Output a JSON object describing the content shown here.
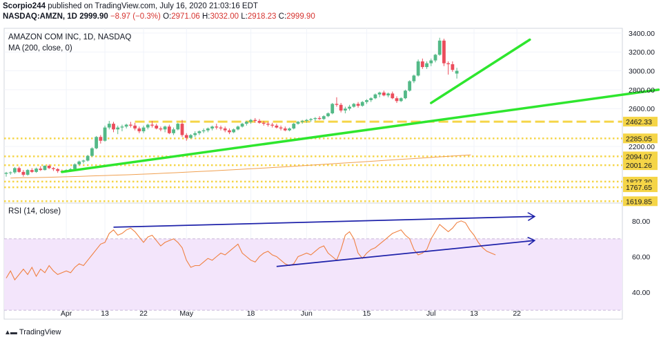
{
  "header": {
    "publisher": "Scorpio244",
    "published_text": "published on TradingView.com, July 16, 2020 21:03:16 EDT",
    "symbol": "NASDAQ:AMZN, 1D",
    "last": "2999.90",
    "change": "−8.97 (−0.3%)",
    "o_label": "O:",
    "o_value": "2971.06",
    "h_label": "H:",
    "h_value": "3032.00",
    "l_label": "L:",
    "l_value": "2918.23",
    "c_label": "C:",
    "c_value": "2999.90"
  },
  "footer": {
    "brand": "TradingView",
    "logo_icon": "tradingview-logo-icon"
  },
  "colors": {
    "up": "#53b987",
    "down": "#eb4d5c",
    "trendline_green": "#2ee62e",
    "trendline_blue": "#1e22aa",
    "ma": "#f0a050",
    "rsi_line": "#f08040",
    "rsi_band": "#f3e5fb",
    "level_dash": "#f5d547",
    "ohlc_down": "#d6332f"
  },
  "chart_data": [
    {
      "type": "candlestick",
      "title": "AMAZON COM INC, 1D, NASDAQ",
      "indicator_label": "MA (200, close, 0)",
      "ylim": [
        1600,
        3450
      ],
      "yticks": [
        "3400.00",
        "3200.00",
        "3000.00",
        "2800.00",
        "2600.00",
        "2200.00"
      ],
      "price_labels": [
        "2462.33",
        "2285.05",
        "2094.07",
        "2001.26",
        "1827.30",
        "1767.65",
        "1619.85"
      ],
      "horizontal_levels": [
        2462.33,
        2285.05,
        2094.07,
        2001.26,
        1827.3,
        1767.65,
        1619.85
      ],
      "x_labels": [
        "Apr",
        "13",
        "22",
        "May",
        "18",
        "Jun",
        "15",
        "Jul",
        "13",
        "22"
      ],
      "x_label_bars": [
        14,
        23,
        32,
        42,
        57,
        70,
        84,
        99,
        109,
        119
      ],
      "candles": [
        [
          1910,
          1930,
          1880,
          1920
        ],
        [
          1920,
          1935,
          1900,
          1925
        ],
        [
          1925,
          1980,
          1910,
          1970
        ],
        [
          1970,
          1985,
          1920,
          1930
        ],
        [
          1930,
          1950,
          1880,
          1900
        ],
        [
          1900,
          1960,
          1890,
          1950
        ],
        [
          1950,
          1970,
          1920,
          1930
        ],
        [
          1930,
          1975,
          1920,
          1965
        ],
        [
          1965,
          1990,
          1940,
          1950
        ],
        [
          1950,
          2000,
          1945,
          1995
        ],
        [
          1995,
          2010,
          1960,
          1970
        ],
        [
          1970,
          1980,
          1940,
          1960
        ],
        [
          1960,
          1970,
          1920,
          1940
        ],
        [
          1940,
          1955,
          1920,
          1935
        ],
        [
          1935,
          1960,
          1925,
          1950
        ],
        [
          1950,
          1970,
          1935,
          1960
        ],
        [
          1960,
          2020,
          1955,
          2010
        ],
        [
          2010,
          2050,
          2000,
          2040
        ],
        [
          2040,
          2060,
          2020,
          2050
        ],
        [
          2050,
          2110,
          2040,
          2100
        ],
        [
          2100,
          2190,
          2090,
          2180
        ],
        [
          2180,
          2310,
          2170,
          2300
        ],
        [
          2300,
          2320,
          2230,
          2260
        ],
        [
          2260,
          2420,
          2250,
          2400
        ],
        [
          2400,
          2470,
          2380,
          2440
        ],
        [
          2440,
          2460,
          2350,
          2380
        ],
        [
          2380,
          2420,
          2330,
          2400
        ],
        [
          2400,
          2430,
          2360,
          2410
        ],
        [
          2410,
          2440,
          2390,
          2430
        ],
        [
          2430,
          2460,
          2400,
          2420
        ],
        [
          2420,
          2450,
          2370,
          2390
        ],
        [
          2390,
          2410,
          2340,
          2360
        ],
        [
          2360,
          2420,
          2340,
          2400
        ],
        [
          2400,
          2440,
          2380,
          2430
        ],
        [
          2430,
          2470,
          2400,
          2420
        ],
        [
          2420,
          2440,
          2380,
          2390
        ],
        [
          2390,
          2410,
          2360,
          2380
        ],
        [
          2380,
          2420,
          2350,
          2410
        ],
        [
          2410,
          2430,
          2330,
          2340
        ],
        [
          2340,
          2400,
          2320,
          2380
        ],
        [
          2380,
          2450,
          2370,
          2440
        ],
        [
          2440,
          2480,
          2300,
          2320
        ],
        [
          2320,
          2340,
          2260,
          2290
        ],
        [
          2290,
          2330,
          2280,
          2320
        ],
        [
          2320,
          2360,
          2300,
          2340
        ],
        [
          2340,
          2370,
          2320,
          2360
        ],
        [
          2360,
          2390,
          2340,
          2370
        ],
        [
          2370,
          2400,
          2350,
          2390
        ],
        [
          2390,
          2420,
          2370,
          2410
        ],
        [
          2410,
          2440,
          2380,
          2400
        ],
        [
          2400,
          2420,
          2370,
          2390
        ],
        [
          2390,
          2410,
          2350,
          2370
        ],
        [
          2370,
          2390,
          2330,
          2350
        ],
        [
          2350,
          2390,
          2340,
          2380
        ],
        [
          2380,
          2420,
          2370,
          2410
        ],
        [
          2410,
          2450,
          2400,
          2440
        ],
        [
          2440,
          2470,
          2420,
          2460
        ],
        [
          2460,
          2490,
          2440,
          2480
        ],
        [
          2480,
          2500,
          2450,
          2470
        ],
        [
          2470,
          2490,
          2440,
          2450
        ],
        [
          2450,
          2470,
          2420,
          2440
        ],
        [
          2440,
          2460,
          2410,
          2430
        ],
        [
          2430,
          2450,
          2400,
          2420
        ],
        [
          2420,
          2440,
          2390,
          2400
        ],
        [
          2400,
          2420,
          2370,
          2390
        ],
        [
          2390,
          2410,
          2360,
          2370
        ],
        [
          2370,
          2400,
          2360,
          2390
        ],
        [
          2390,
          2450,
          2380,
          2440
        ],
        [
          2440,
          2470,
          2430,
          2460
        ],
        [
          2460,
          2480,
          2440,
          2470
        ],
        [
          2470,
          2490,
          2450,
          2480
        ],
        [
          2480,
          2500,
          2460,
          2490
        ],
        [
          2490,
          2510,
          2470,
          2500
        ],
        [
          2500,
          2520,
          2480,
          2490
        ],
        [
          2490,
          2530,
          2480,
          2520
        ],
        [
          2520,
          2560,
          2510,
          2550
        ],
        [
          2550,
          2660,
          2540,
          2650
        ],
        [
          2650,
          2720,
          2620,
          2640
        ],
        [
          2640,
          2660,
          2560,
          2580
        ],
        [
          2580,
          2620,
          2550,
          2600
        ],
        [
          2600,
          2640,
          2580,
          2620
        ],
        [
          2620,
          2660,
          2610,
          2650
        ],
        [
          2650,
          2670,
          2610,
          2630
        ],
        [
          2630,
          2680,
          2620,
          2670
        ],
        [
          2670,
          2700,
          2650,
          2690
        ],
        [
          2690,
          2720,
          2670,
          2710
        ],
        [
          2710,
          2760,
          2700,
          2750
        ],
        [
          2750,
          2780,
          2720,
          2770
        ],
        [
          2770,
          2790,
          2730,
          2740
        ],
        [
          2740,
          2770,
          2720,
          2760
        ],
        [
          2760,
          2780,
          2700,
          2710
        ],
        [
          2710,
          2730,
          2660,
          2680
        ],
        [
          2680,
          2720,
          2670,
          2710
        ],
        [
          2710,
          2800,
          2700,
          2790
        ],
        [
          2790,
          2900,
          2780,
          2890
        ],
        [
          2890,
          2960,
          2870,
          2950
        ],
        [
          2950,
          3120,
          2940,
          3100
        ],
        [
          3100,
          3130,
          3020,
          3040
        ],
        [
          3040,
          3100,
          3020,
          3080
        ],
        [
          3080,
          3130,
          3050,
          3110
        ],
        [
          3110,
          3180,
          3090,
          3170
        ],
        [
          3170,
          3350,
          3160,
          3320
        ],
        [
          3320,
          3340,
          3050,
          3080
        ],
        [
          3080,
          3100,
          2960,
          3070
        ],
        [
          3070,
          3100,
          2990,
          3010
        ],
        [
          2971,
          3032,
          2918,
          3000
        ]
      ],
      "ma200": [
        1865,
        1868,
        1870,
        1873,
        1876,
        1880,
        1884,
        1888,
        1892,
        1896,
        1900,
        1905,
        1910,
        1916,
        1922,
        1928,
        1934,
        1940,
        1947,
        1954,
        1961,
        1968,
        1975,
        1982,
        1990,
        1998,
        2006,
        2014,
        2022,
        2030,
        2038,
        2046,
        2054,
        2062,
        2070,
        2078,
        2086,
        2094,
        2102,
        2110
      ],
      "ma200_start_bar": 1,
      "ma200_step": 2.75,
      "trendlines": [
        {
          "name": "support-long",
          "from": [
            13,
            1930
          ],
          "to": [
            152,
            2800
          ]
        },
        {
          "name": "support-steep",
          "from": [
            99,
            2660
          ],
          "to": [
            122,
            3330
          ]
        }
      ]
    },
    {
      "type": "line",
      "title": "RSI (14, close)",
      "ylim": [
        25,
        90
      ],
      "yticks": [
        "80.00",
        "60.00",
        "40.00"
      ],
      "band": [
        30,
        70
      ],
      "values": [
        48,
        52,
        47,
        50,
        53,
        50,
        54,
        49,
        53,
        51,
        55,
        52,
        50,
        51,
        52,
        51,
        54,
        56,
        55,
        58,
        61,
        64,
        67,
        68,
        73,
        75,
        72,
        73,
        75,
        76,
        74,
        71,
        68,
        71,
        72,
        69,
        66,
        68,
        69,
        70,
        68,
        65,
        58,
        54,
        55,
        55,
        57,
        59,
        58,
        60,
        62,
        61,
        63,
        65,
        67,
        62,
        60,
        58,
        57,
        60,
        62,
        63,
        61,
        60,
        58,
        56,
        55,
        56,
        60,
        61,
        62,
        61,
        63,
        65,
        66,
        62,
        60,
        58,
        64,
        72,
        74,
        70,
        62,
        59,
        62,
        64,
        65,
        67,
        69,
        71,
        73,
        74,
        75,
        72,
        70,
        64,
        61,
        62,
        64,
        70,
        74,
        78,
        76,
        74,
        76,
        79,
        80,
        79,
        75,
        72,
        68,
        65,
        63,
        62,
        61
      ],
      "trendlines": [
        {
          "name": "rsi-resistance",
          "from": [
            25,
            76.5
          ],
          "to": [
            122,
            82.5
          ]
        },
        {
          "name": "rsi-support",
          "from": [
            63,
            54.5
          ],
          "to": [
            122,
            69
          ]
        }
      ]
    }
  ]
}
